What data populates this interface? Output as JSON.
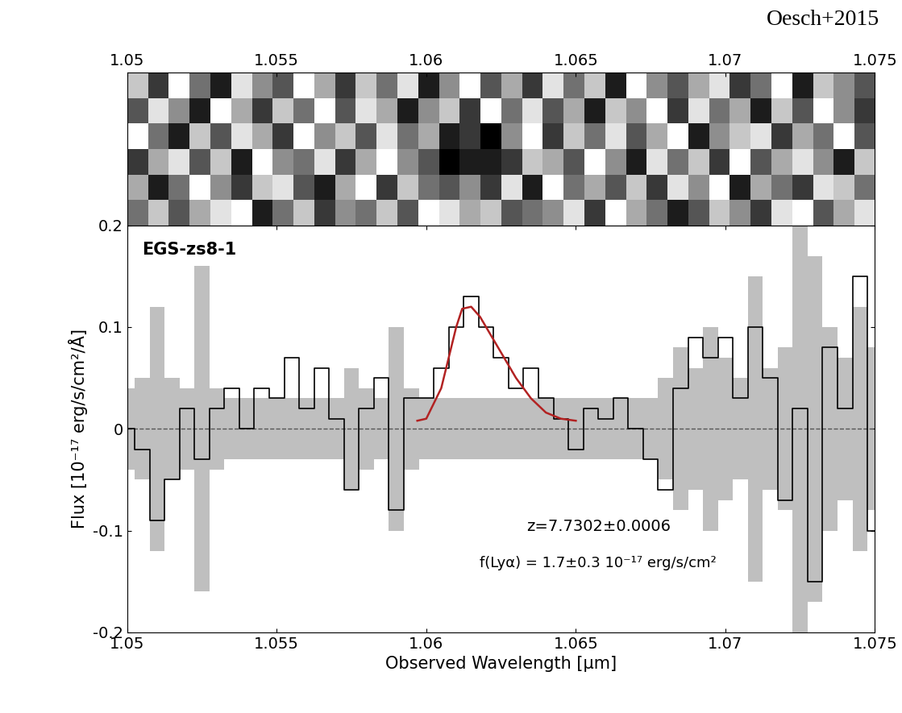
{
  "credit": "Oesch+2015",
  "chart_data": [
    {
      "type": "heatmap",
      "color": "gray",
      "tick_labels": "x",
      "xlim": [
        1.05,
        1.075
      ],
      "xticks": [
        1.05,
        1.055,
        1.06,
        1.065,
        1.07,
        1.075
      ],
      "cells": [
        [
          7,
          2,
          9,
          4,
          1,
          8,
          5,
          3,
          9,
          6,
          2,
          7,
          4,
          8,
          1,
          5,
          9,
          3,
          6,
          2,
          8,
          4,
          7,
          1,
          9,
          5,
          3,
          6,
          8,
          2,
          4,
          9,
          1,
          7,
          5,
          3
        ],
        [
          3,
          8,
          5,
          1,
          9,
          6,
          2,
          7,
          4,
          9,
          3,
          8,
          6,
          1,
          5,
          7,
          2,
          9,
          4,
          8,
          3,
          6,
          1,
          7,
          5,
          9,
          2,
          8,
          4,
          6,
          1,
          7,
          3,
          9,
          5,
          2
        ],
        [
          9,
          4,
          1,
          7,
          3,
          8,
          6,
          2,
          9,
          5,
          7,
          3,
          8,
          4,
          6,
          1,
          2,
          0,
          5,
          9,
          2,
          7,
          4,
          8,
          3,
          6,
          9,
          1,
          5,
          7,
          8,
          2,
          6,
          4,
          9,
          3
        ],
        [
          2,
          6,
          8,
          3,
          7,
          1,
          9,
          5,
          4,
          8,
          2,
          6,
          9,
          5,
          3,
          0,
          1,
          1,
          2,
          7,
          6,
          3,
          9,
          5,
          1,
          8,
          4,
          7,
          2,
          9,
          3,
          6,
          8,
          5,
          1,
          7
        ],
        [
          6,
          1,
          4,
          9,
          5,
          2,
          7,
          8,
          3,
          1,
          6,
          9,
          2,
          7,
          4,
          3,
          5,
          2,
          8,
          1,
          9,
          4,
          6,
          3,
          7,
          2,
          8,
          5,
          9,
          1,
          6,
          4,
          2,
          8,
          7,
          4
        ],
        [
          4,
          7,
          3,
          6,
          8,
          9,
          1,
          4,
          7,
          2,
          5,
          4,
          7,
          3,
          9,
          8,
          6,
          7,
          3,
          4,
          5,
          8,
          2,
          9,
          6,
          4,
          1,
          3,
          7,
          5,
          2,
          8,
          9,
          3,
          6,
          8
        ]
      ]
    },
    {
      "type": "line",
      "label": "EGS-zs8-1",
      "xlabel": "Observed Wavelength [μm]",
      "ylabel": "Flux [10⁻¹⁷ erg/s/cm²/Å]",
      "xlim": [
        1.05,
        1.075
      ],
      "xticks": [
        1.05,
        1.055,
        1.06,
        1.065,
        1.07,
        1.075
      ],
      "ylim": [
        -0.2,
        0.2
      ],
      "yticks": [
        -0.2,
        -0.1,
        0,
        0.1,
        0.2
      ],
      "annotations": [
        "z=7.7302±0.0006",
        "f(Lyα) = 1.7±0.3 10⁻¹⁷ erg/s/cm²"
      ],
      "hline": 0,
      "hline_style": "dashed",
      "series": [
        {
          "type": "band",
          "color": "#bfbfbf",
          "x": [
            1.05,
            1.0505,
            1.051,
            1.0515,
            1.052,
            1.0525,
            1.053,
            1.0535,
            1.054,
            1.0545,
            1.055,
            1.0555,
            1.056,
            1.0565,
            1.057,
            1.0575,
            1.058,
            1.0585,
            1.059,
            1.0595,
            1.06,
            1.0605,
            1.061,
            1.0615,
            1.062,
            1.0625,
            1.063,
            1.0635,
            1.064,
            1.0645,
            1.065,
            1.0655,
            1.066,
            1.0665,
            1.067,
            1.0675,
            1.068,
            1.0685,
            1.069,
            1.0695,
            1.07,
            1.0705,
            1.071,
            1.0715,
            1.072,
            1.0725,
            1.073,
            1.0735,
            1.074,
            1.0745,
            1.075
          ],
          "values": [
            0.04,
            0.05,
            0.12,
            0.05,
            0.04,
            0.16,
            0.04,
            0.03,
            0.03,
            0.03,
            0.03,
            0.03,
            0.03,
            0.03,
            0.03,
            0.06,
            0.04,
            0.03,
            0.1,
            0.04,
            0.03,
            0.03,
            0.03,
            0.03,
            0.03,
            0.03,
            0.03,
            0.03,
            0.03,
            0.03,
            0.03,
            0.03,
            0.03,
            0.03,
            0.03,
            0.03,
            0.05,
            0.08,
            0.06,
            0.1,
            0.07,
            0.05,
            0.15,
            0.06,
            0.08,
            0.2,
            0.17,
            0.1,
            0.07,
            0.12,
            0.08
          ]
        },
        {
          "type": "step",
          "color": "#000000",
          "x": [
            1.05,
            1.0505,
            1.051,
            1.0515,
            1.052,
            1.0525,
            1.053,
            1.0535,
            1.054,
            1.0545,
            1.055,
            1.0555,
            1.056,
            1.0565,
            1.057,
            1.0575,
            1.058,
            1.0585,
            1.059,
            1.0595,
            1.06,
            1.0605,
            1.061,
            1.0615,
            1.062,
            1.0625,
            1.063,
            1.0635,
            1.064,
            1.0645,
            1.065,
            1.0655,
            1.066,
            1.0665,
            1.067,
            1.0675,
            1.068,
            1.0685,
            1.069,
            1.0695,
            1.07,
            1.0705,
            1.071,
            1.0715,
            1.072,
            1.0725,
            1.073,
            1.0735,
            1.074,
            1.0745,
            1.075
          ],
          "values": [
            0.0,
            -0.02,
            -0.09,
            -0.05,
            0.02,
            -0.03,
            0.02,
            0.04,
            0.0,
            0.04,
            0.03,
            0.07,
            0.02,
            0.06,
            0.01,
            -0.06,
            0.02,
            0.05,
            -0.08,
            0.03,
            0.03,
            0.06,
            0.1,
            0.13,
            0.1,
            0.07,
            0.04,
            0.06,
            0.03,
            0.01,
            -0.02,
            0.02,
            0.01,
            0.03,
            0.0,
            -0.03,
            -0.06,
            0.04,
            0.09,
            0.07,
            0.09,
            0.03,
            0.1,
            0.05,
            -0.07,
            0.02,
            -0.15,
            0.08,
            0.02,
            0.15,
            -0.1
          ]
        },
        {
          "type": "line",
          "color": "#b22222",
          "x": [
            1.0597,
            1.06,
            1.0605,
            1.061,
            1.0612,
            1.0615,
            1.0618,
            1.062,
            1.0625,
            1.063,
            1.0635,
            1.064,
            1.0645,
            1.065
          ],
          "values": [
            0.008,
            0.01,
            0.04,
            0.1,
            0.118,
            0.12,
            0.11,
            0.1,
            0.075,
            0.05,
            0.03,
            0.016,
            0.01,
            0.008
          ]
        }
      ]
    }
  ]
}
